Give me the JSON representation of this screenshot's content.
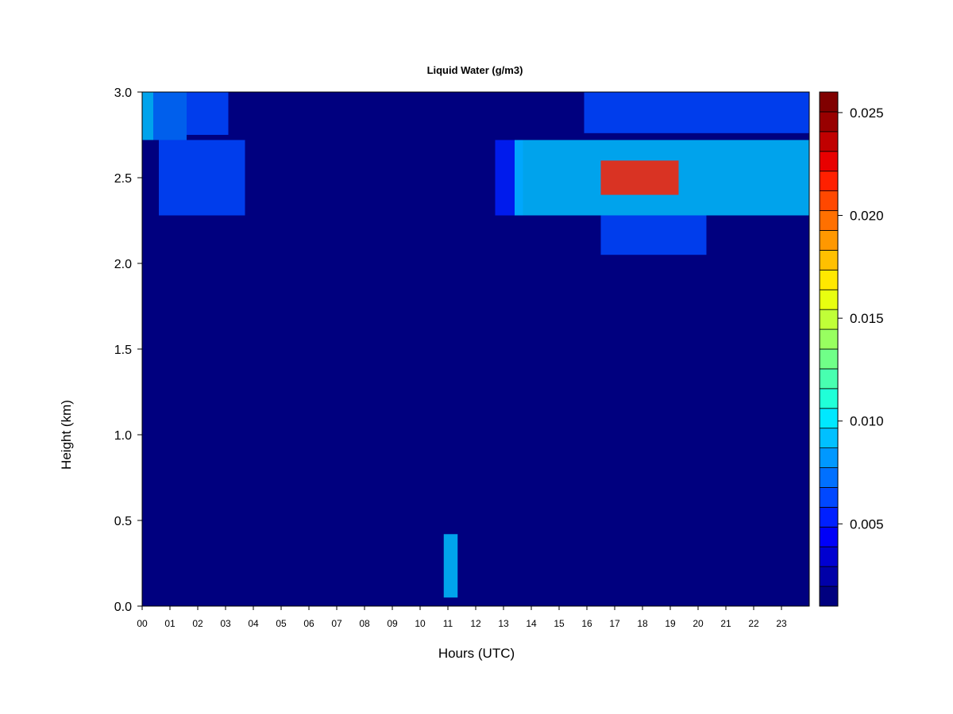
{
  "chart_data": {
    "type": "heatmap",
    "title": "Liquid Water (g/m3)",
    "xlabel": "Hours (UTC)",
    "ylabel": "Height (km)",
    "xlim": [
      0,
      24
    ],
    "ylim": [
      0,
      3
    ],
    "x_ticks": [
      "00",
      "01",
      "02",
      "03",
      "04",
      "05",
      "06",
      "07",
      "08",
      "09",
      "10",
      "11",
      "12",
      "13",
      "14",
      "15",
      "16",
      "17",
      "18",
      "19",
      "20",
      "21",
      "22",
      "23"
    ],
    "y_ticks": [
      "0.0",
      "0.5",
      "1.0",
      "1.5",
      "2.0",
      "2.5",
      "3.0"
    ],
    "colorbar": {
      "range": [
        0.001,
        0.026
      ],
      "ticks": [
        "0.005",
        "0.010",
        "0.015",
        "0.020",
        "0.025"
      ],
      "colors": [
        "#00007f",
        "#0000a8",
        "#0000d0",
        "#0000f8",
        "#0020ff",
        "#0048ff",
        "#0070ff",
        "#0098ff",
        "#00c0ff",
        "#00e8ff",
        "#20ffd8",
        "#48ffb0",
        "#70ff88",
        "#98ff60",
        "#c0ff38",
        "#e8ff10",
        "#ffe800",
        "#ffc000",
        "#ff9800",
        "#ff7000",
        "#ff4800",
        "#ff2000",
        "#e80000",
        "#c00000",
        "#980000",
        "#800000"
      ]
    },
    "regions": [
      {
        "hours": [
          0.0,
          0.4
        ],
        "heights": [
          2.72,
          3.0
        ],
        "value": 0.009
      },
      {
        "hours": [
          0.4,
          1.6
        ],
        "heights": [
          2.72,
          3.0
        ],
        "value": 0.007
      },
      {
        "hours": [
          1.6,
          3.1
        ],
        "heights": [
          2.75,
          3.0
        ],
        "value": 0.006
      },
      {
        "hours": [
          0.6,
          3.7
        ],
        "heights": [
          2.28,
          2.72
        ],
        "value": 0.006
      },
      {
        "hours": [
          12.7,
          13.7
        ],
        "heights": [
          2.28,
          2.72
        ],
        "value": 0.005
      },
      {
        "hours": [
          13.4,
          24.0
        ],
        "heights": [
          2.28,
          2.72
        ],
        "value": 0.009
      },
      {
        "hours": [
          16.5,
          19.3
        ],
        "heights": [
          2.4,
          2.6
        ],
        "value": 0.022
      },
      {
        "hours": [
          15.9,
          24.0
        ],
        "heights": [
          2.76,
          3.0
        ],
        "value": 0.006
      },
      {
        "hours": [
          16.5,
          20.3
        ],
        "heights": [
          2.05,
          2.28
        ],
        "value": 0.006
      },
      {
        "hours": [
          10.85,
          11.35
        ],
        "heights": [
          0.05,
          0.42
        ],
        "value": 0.009
      }
    ]
  }
}
